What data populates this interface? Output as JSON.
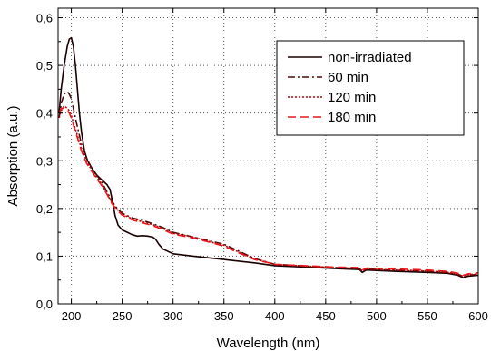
{
  "chart_data": {
    "type": "line",
    "xlabel": "Wavelength (nm)",
    "ylabel": "Absorption (a.u.)",
    "xlim": [
      187,
      600
    ],
    "ylim": [
      0.0,
      0.62
    ],
    "xticks": [
      200,
      250,
      300,
      350,
      400,
      450,
      500,
      550,
      600
    ],
    "xtick_labels": [
      "200",
      "250",
      "300",
      "350",
      "400",
      "450",
      "500",
      "550",
      "600"
    ],
    "yticks": [
      0.0,
      0.1,
      0.2,
      0.3,
      0.4,
      0.5,
      0.6
    ],
    "ytick_labels": [
      "0,0",
      "0,1",
      "0,2",
      "0,3",
      "0,4",
      "0,5",
      "0,6"
    ],
    "grid": true,
    "legend_position": "top-right",
    "series": [
      {
        "name": "non-irradiated",
        "color": "#1a0000",
        "dash": "",
        "x": [
          188,
          190,
          193,
          196,
          198,
          200,
          202,
          204,
          206,
          208,
          210,
          213,
          216,
          220,
          225,
          230,
          235,
          238,
          240,
          243,
          246,
          250,
          255,
          260,
          265,
          270,
          275,
          280,
          283,
          286,
          290,
          300,
          320,
          350,
          380,
          400,
          430,
          460,
          483,
          486,
          490,
          520,
          550,
          570,
          580,
          585,
          590,
          600
        ],
        "y": [
          0.4,
          0.45,
          0.5,
          0.54,
          0.555,
          0.558,
          0.54,
          0.5,
          0.45,
          0.4,
          0.36,
          0.32,
          0.3,
          0.285,
          0.27,
          0.26,
          0.25,
          0.24,
          0.22,
          0.185,
          0.165,
          0.155,
          0.15,
          0.145,
          0.142,
          0.143,
          0.142,
          0.14,
          0.135,
          0.125,
          0.115,
          0.105,
          0.1,
          0.093,
          0.086,
          0.08,
          0.077,
          0.074,
          0.072,
          0.066,
          0.071,
          0.068,
          0.066,
          0.064,
          0.06,
          0.055,
          0.058,
          0.06
        ]
      },
      {
        "name": "60 min",
        "color": "#4a0a0a",
        "dash": "8,3,2,3",
        "x": [
          188,
          190,
          193,
          196,
          198,
          200,
          202,
          205,
          210,
          215,
          220,
          225,
          230,
          235,
          240,
          245,
          250,
          260,
          270,
          280,
          290,
          300,
          320,
          340,
          350,
          360,
          380,
          400,
          430,
          460,
          483,
          486,
          490,
          520,
          550,
          570,
          580,
          585,
          590,
          600
        ],
        "y": [
          0.39,
          0.42,
          0.44,
          0.445,
          0.44,
          0.43,
          0.41,
          0.38,
          0.335,
          0.305,
          0.285,
          0.27,
          0.255,
          0.235,
          0.215,
          0.2,
          0.19,
          0.18,
          0.175,
          0.168,
          0.16,
          0.15,
          0.14,
          0.13,
          0.125,
          0.115,
          0.095,
          0.083,
          0.079,
          0.076,
          0.074,
          0.069,
          0.073,
          0.07,
          0.068,
          0.066,
          0.062,
          0.058,
          0.06,
          0.062
        ]
      },
      {
        "name": "120 min",
        "color": "#c00000",
        "dash": "2,2",
        "x": [
          188,
          190,
          193,
          196,
          198,
          200,
          202,
          205,
          210,
          215,
          220,
          225,
          230,
          235,
          240,
          245,
          250,
          260,
          270,
          280,
          290,
          300,
          320,
          340,
          350,
          360,
          380,
          400,
          430,
          460,
          483,
          486,
          490,
          520,
          550,
          570,
          580,
          585,
          590,
          600
        ],
        "y": [
          0.39,
          0.405,
          0.415,
          0.41,
          0.405,
          0.395,
          0.38,
          0.36,
          0.325,
          0.3,
          0.28,
          0.265,
          0.25,
          0.232,
          0.212,
          0.198,
          0.188,
          0.178,
          0.172,
          0.166,
          0.158,
          0.148,
          0.14,
          0.128,
          0.123,
          0.113,
          0.094,
          0.083,
          0.079,
          0.076,
          0.074,
          0.069,
          0.073,
          0.071,
          0.069,
          0.066,
          0.062,
          0.058,
          0.061,
          0.063
        ]
      },
      {
        "name": "180 min",
        "color": "#e8191e",
        "dash": "9,5",
        "x": [
          188,
          190,
          193,
          196,
          198,
          200,
          202,
          205,
          210,
          215,
          220,
          225,
          230,
          235,
          240,
          245,
          250,
          260,
          270,
          280,
          290,
          300,
          320,
          340,
          350,
          360,
          380,
          400,
          430,
          460,
          483,
          486,
          490,
          520,
          550,
          570,
          580,
          585,
          590,
          600
        ],
        "y": [
          0.4,
          0.41,
          0.41,
          0.405,
          0.4,
          0.39,
          0.375,
          0.355,
          0.32,
          0.295,
          0.278,
          0.262,
          0.248,
          0.23,
          0.21,
          0.196,
          0.186,
          0.176,
          0.17,
          0.164,
          0.156,
          0.146,
          0.138,
          0.127,
          0.121,
          0.111,
          0.093,
          0.083,
          0.08,
          0.077,
          0.076,
          0.071,
          0.075,
          0.073,
          0.071,
          0.068,
          0.064,
          0.06,
          0.063,
          0.065
        ]
      }
    ]
  }
}
